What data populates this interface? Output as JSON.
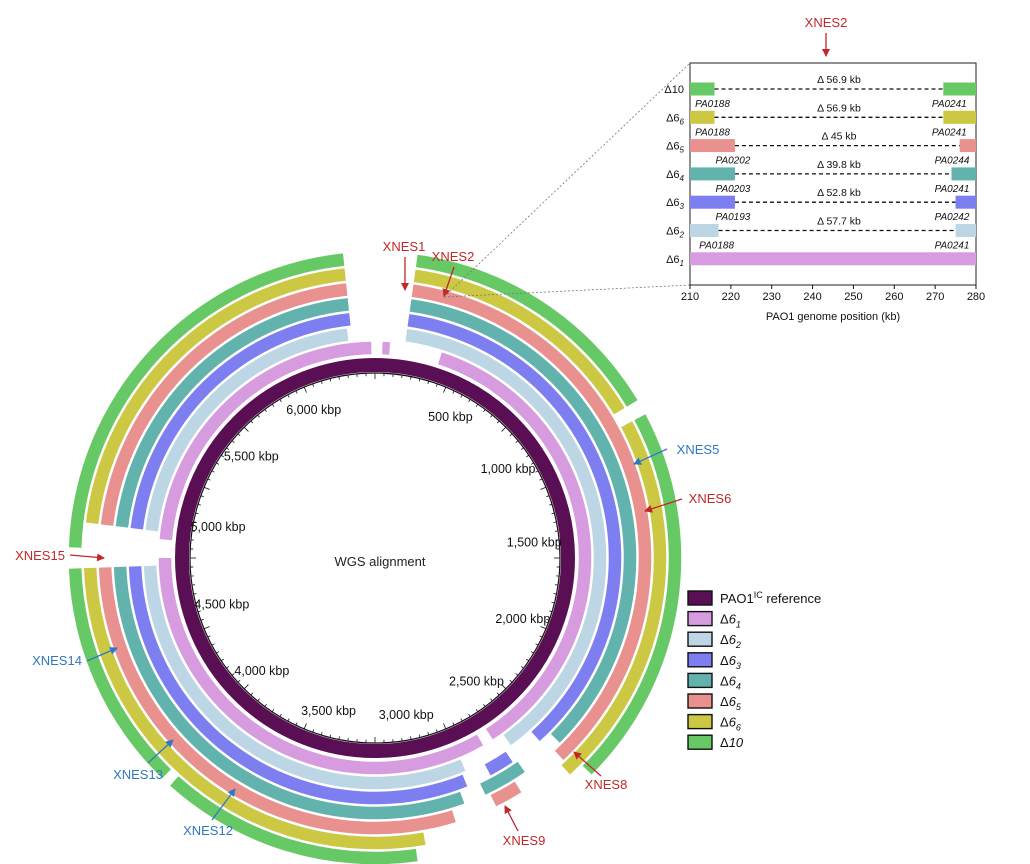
{
  "center_label": "WGS alignment",
  "ring_colors": {
    "reference": "#5a0f55",
    "d6_1": "#d79be0",
    "d6_2": "#bcd6e6",
    "d6_3": "#7d7ef0",
    "d6_4": "#62b3ad",
    "d6_5": "#e8918f",
    "d6_6": "#cdc844",
    "d10": "#67c965"
  },
  "kbp_labels": [
    {
      "text": "500 kbp",
      "kb": 500
    },
    {
      "text": "1,000 kbp",
      "kb": 1000
    },
    {
      "text": "1,500 kbp",
      "kb": 1500
    },
    {
      "text": "2,000 kbp",
      "kb": 2000
    },
    {
      "text": "2,500 kbp",
      "kb": 2500
    },
    {
      "text": "3,000 kbp",
      "kb": 3000
    },
    {
      "text": "3,500 kbp",
      "kb": 3500
    },
    {
      "text": "4,000 kbp",
      "kb": 4000
    },
    {
      "text": "4,500 kbp",
      "kb": 4500
    },
    {
      "text": "5,000 kbp",
      "kb": 5000
    },
    {
      "text": "5,500 kbp",
      "kb": 5500
    },
    {
      "text": "6,000 kbp",
      "kb": 6000
    }
  ],
  "xnes": {
    "red_color": "#c0282a",
    "blue_color": "#2f78c4",
    "xnes1": "XNES1",
    "xnes2": "XNES2",
    "xnes5": "XNES5",
    "xnes6": "XNES6",
    "xnes8": "XNES8",
    "xnes9": "XNES9",
    "xnes12": "XNES12",
    "xnes13": "XNES13",
    "xnes14": "XNES14",
    "xnes15": "XNES15"
  },
  "legend": {
    "reference_main": "PAO1",
    "reference_sup": "IC",
    "reference_suffix": " reference",
    "items": [
      "Δ6",
      "Δ6",
      "Δ6",
      "Δ6",
      "Δ6",
      "Δ6",
      "Δ10"
    ],
    "subs": [
      "1",
      "2",
      "3",
      "4",
      "5",
      "6",
      ""
    ]
  },
  "inset": {
    "title": "XNES2",
    "xlabel": "PAO1 genome position (kb)",
    "xlim": [
      210,
      280
    ],
    "ticks": [
      "210",
      "220",
      "230",
      "240",
      "250",
      "260",
      "270",
      "280"
    ],
    "rows": [
      {
        "label": "Δ10",
        "sub": "",
        "deletion": "Δ 56.9 kb",
        "left_gene": "PA0188",
        "right_gene": "PA0241"
      },
      {
        "label": "Δ6",
        "sub": "6",
        "deletion": "Δ 56.9 kb",
        "left_gene": "PA0188",
        "right_gene": "PA0241"
      },
      {
        "label": "Δ6",
        "sub": "5",
        "deletion": "Δ 45 kb",
        "left_gene": "PA0202",
        "right_gene": "PA0244"
      },
      {
        "label": "Δ6",
        "sub": "4",
        "deletion": "Δ 39.8 kb",
        "left_gene": "PA0203",
        "right_gene": "PA0241"
      },
      {
        "label": "Δ6",
        "sub": "3",
        "deletion": "Δ 52.8 kb",
        "left_gene": "PA0193",
        "right_gene": "PA0242"
      },
      {
        "label": "Δ6",
        "sub": "2",
        "deletion": "Δ 57.7 kb",
        "left_gene": "PA0188",
        "right_gene": "PA0241"
      },
      {
        "label": "Δ6",
        "sub": "1",
        "deletion": "",
        "left_gene": "",
        "right_gene": ""
      }
    ]
  }
}
